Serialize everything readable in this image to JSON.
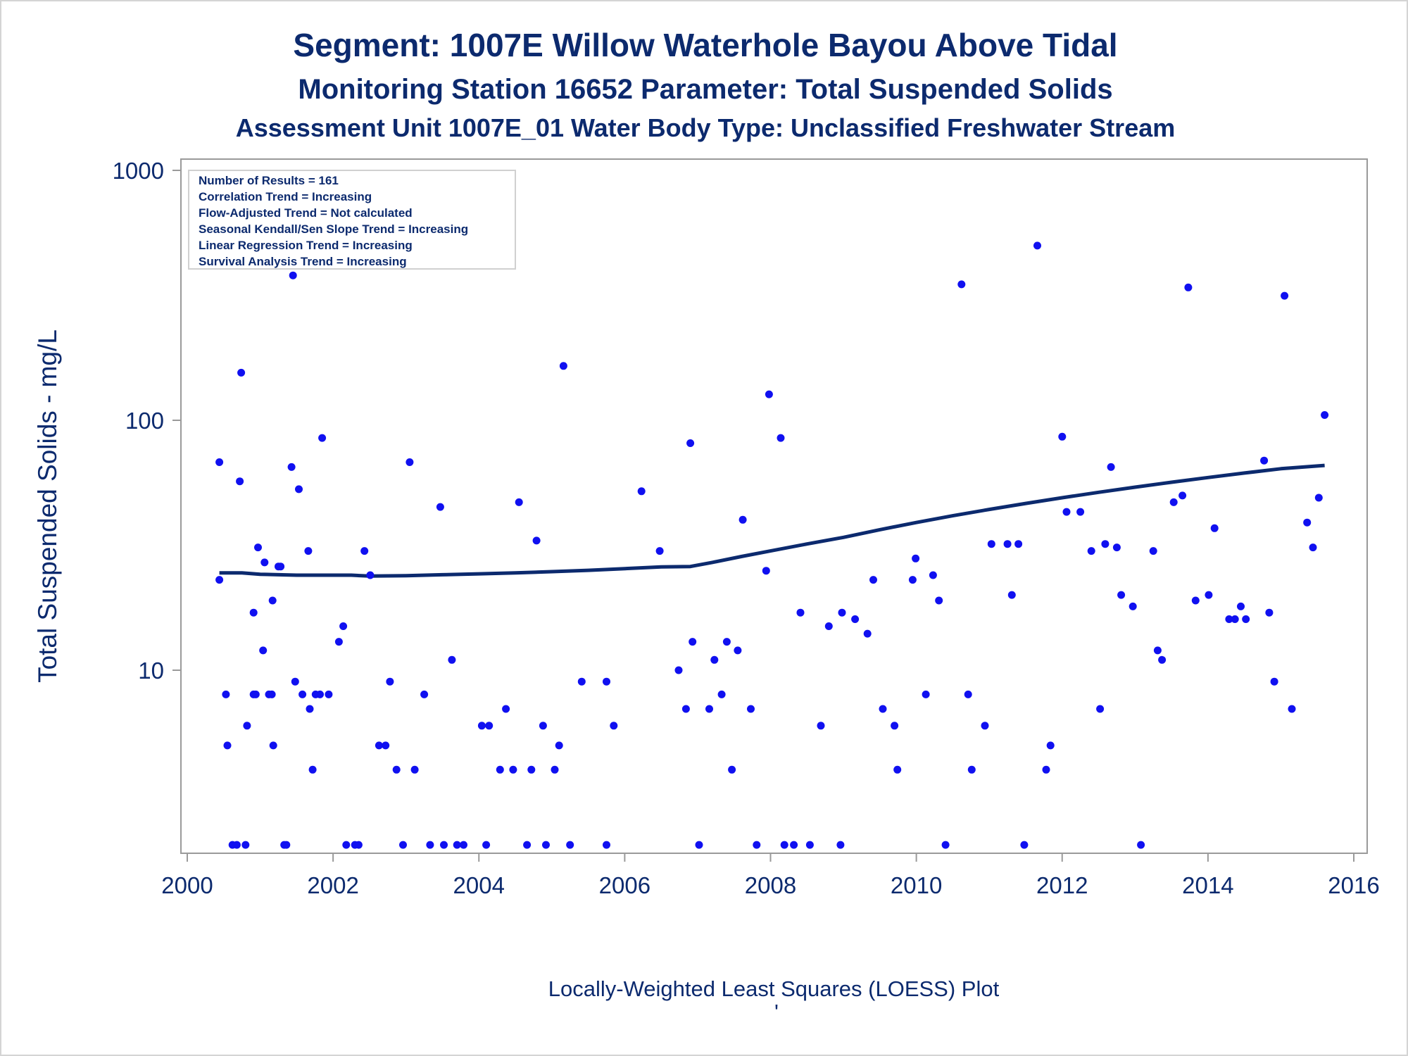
{
  "chart_data": {
    "type": "scatter",
    "title": "Segment: 1007E  Willow Waterhole Bayou Above Tidal",
    "subtitle": "Monitoring Station 16652 Parameter: Total Suspended Solids",
    "subtitle2": "Assessment Unit 1007E_01   Water Body Type: Unclassified Freshwater Stream",
    "xlabel": "",
    "ylabel": "Total Suspended Solids - mg/L",
    "caption": "Locally-Weighted Least Squares (LOESS) Plot",
    "caption_mark": "'",
    "y_scale": "log",
    "xlim": [
      2000,
      2016
    ],
    "ylim": [
      2,
      1000
    ],
    "x_ticks": [
      "2000",
      "2002",
      "2004",
      "2006",
      "2008",
      "2010",
      "2012",
      "2014",
      "2016"
    ],
    "y_ticks": [
      "10",
      "100",
      "1000"
    ],
    "grid": false,
    "legend_position": "top-left",
    "stats_box": [
      "Number of Results = 161",
      "Correlation Trend = Increasing",
      "Flow-Adjusted Trend = Not calculated",
      "Seasonal Kendall/Sen Slope Trend = Increasing",
      "Linear Regression Trend = Increasing",
      "Survival Analysis Trend = Increasing"
    ],
    "colors": {
      "points": "#1010f0",
      "loess": "#0c2a6e",
      "text": "#0c2a6e",
      "frame": "#9a9a9a"
    },
    "series": [
      {
        "type": "scatter",
        "points": [
          [
            2000.44,
            23
          ],
          [
            2000.44,
            68
          ],
          [
            2000.53,
            8
          ],
          [
            2000.55,
            5
          ],
          [
            2000.62,
            2
          ],
          [
            2000.68,
            2
          ],
          [
            2000.72,
            57
          ],
          [
            2000.74,
            155
          ],
          [
            2000.8,
            2
          ],
          [
            2000.82,
            6
          ],
          [
            2000.91,
            8
          ],
          [
            2000.91,
            17
          ],
          [
            2000.94,
            8
          ],
          [
            2000.97,
            31
          ],
          [
            2001.04,
            12
          ],
          [
            2001.06,
            27
          ],
          [
            2001.12,
            8
          ],
          [
            2001.16,
            8
          ],
          [
            2001.17,
            19
          ],
          [
            2001.18,
            5
          ],
          [
            2001.25,
            26
          ],
          [
            2001.28,
            26
          ],
          [
            2001.33,
            2
          ],
          [
            2001.36,
            2
          ],
          [
            2001.43,
            65
          ],
          [
            2001.45,
            380
          ],
          [
            2001.48,
            9
          ],
          [
            2001.53,
            53
          ],
          [
            2001.58,
            8
          ],
          [
            2001.66,
            30
          ],
          [
            2001.68,
            7
          ],
          [
            2001.72,
            4
          ],
          [
            2001.76,
            8
          ],
          [
            2001.82,
            8
          ],
          [
            2001.85,
            85
          ],
          [
            2001.94,
            8
          ],
          [
            2002.08,
            13
          ],
          [
            2002.14,
            15
          ],
          [
            2002.18,
            2
          ],
          [
            2002.3,
            2
          ],
          [
            2002.35,
            2
          ],
          [
            2002.43,
            30
          ],
          [
            2002.51,
            24
          ],
          [
            2002.63,
            5
          ],
          [
            2002.72,
            5
          ],
          [
            2002.78,
            9
          ],
          [
            2002.87,
            4
          ],
          [
            2002.96,
            2
          ],
          [
            2003.05,
            68
          ],
          [
            2003.12,
            4
          ],
          [
            2003.25,
            8
          ],
          [
            2003.33,
            2
          ],
          [
            2003.47,
            45
          ],
          [
            2003.52,
            2
          ],
          [
            2003.63,
            11
          ],
          [
            2003.7,
            2
          ],
          [
            2003.79,
            2
          ],
          [
            2004.04,
            6
          ],
          [
            2004.1,
            2
          ],
          [
            2004.14,
            6
          ],
          [
            2004.29,
            4
          ],
          [
            2004.37,
            7
          ],
          [
            2004.47,
            4
          ],
          [
            2004.55,
            47
          ],
          [
            2004.66,
            2
          ],
          [
            2004.72,
            4
          ],
          [
            2004.79,
            33
          ],
          [
            2004.88,
            6
          ],
          [
            2004.92,
            2
          ],
          [
            2005.04,
            4
          ],
          [
            2005.1,
            5
          ],
          [
            2005.16,
            165
          ],
          [
            2005.25,
            2
          ],
          [
            2005.41,
            9
          ],
          [
            2005.75,
            2
          ],
          [
            2005.75,
            9
          ],
          [
            2005.85,
            6
          ],
          [
            2006.23,
            52
          ],
          [
            2006.48,
            30
          ],
          [
            2006.74,
            10
          ],
          [
            2006.84,
            7
          ],
          [
            2006.9,
            81
          ],
          [
            2006.93,
            13
          ],
          [
            2007.02,
            2
          ],
          [
            2007.16,
            7
          ],
          [
            2007.23,
            11
          ],
          [
            2007.33,
            8
          ],
          [
            2007.4,
            13
          ],
          [
            2007.47,
            4
          ],
          [
            2007.55,
            12
          ],
          [
            2007.62,
            40
          ],
          [
            2007.73,
            7
          ],
          [
            2007.81,
            2
          ],
          [
            2007.94,
            25
          ],
          [
            2007.98,
            127
          ],
          [
            2008.14,
            85
          ],
          [
            2008.19,
            2
          ],
          [
            2008.32,
            2
          ],
          [
            2008.41,
            17
          ],
          [
            2008.54,
            2
          ],
          [
            2008.69,
            6
          ],
          [
            2008.8,
            15
          ],
          [
            2008.96,
            2
          ],
          [
            2008.98,
            17
          ],
          [
            2009.16,
            16
          ],
          [
            2009.33,
            14
          ],
          [
            2009.41,
            23
          ],
          [
            2009.54,
            7
          ],
          [
            2009.7,
            6
          ],
          [
            2009.74,
            4
          ],
          [
            2009.95,
            23
          ],
          [
            2009.99,
            28
          ],
          [
            2010.13,
            8
          ],
          [
            2010.23,
            24
          ],
          [
            2010.31,
            19
          ],
          [
            2010.4,
            2
          ],
          [
            2010.62,
            350
          ],
          [
            2010.71,
            8
          ],
          [
            2010.76,
            4
          ],
          [
            2010.94,
            6
          ],
          [
            2011.03,
            32
          ],
          [
            2011.25,
            32
          ],
          [
            2011.31,
            20
          ],
          [
            2011.4,
            32
          ],
          [
            2011.48,
            2
          ],
          [
            2011.66,
            500
          ],
          [
            2011.78,
            4
          ],
          [
            2011.84,
            5
          ],
          [
            2012.0,
            86
          ],
          [
            2012.06,
            43
          ],
          [
            2012.25,
            43
          ],
          [
            2012.4,
            30
          ],
          [
            2012.52,
            7
          ],
          [
            2012.59,
            32
          ],
          [
            2012.67,
            65
          ],
          [
            2012.75,
            31
          ],
          [
            2012.81,
            20
          ],
          [
            2012.97,
            18
          ],
          [
            2013.08,
            2
          ],
          [
            2013.25,
            30
          ],
          [
            2013.31,
            12
          ],
          [
            2013.37,
            11
          ],
          [
            2013.53,
            47
          ],
          [
            2013.65,
            50
          ],
          [
            2013.73,
            340
          ],
          [
            2013.83,
            19
          ],
          [
            2014.01,
            20
          ],
          [
            2014.09,
            37
          ],
          [
            2014.29,
            16
          ],
          [
            2014.37,
            16
          ],
          [
            2014.45,
            18
          ],
          [
            2014.52,
            16
          ],
          [
            2014.77,
            69
          ],
          [
            2014.84,
            17
          ],
          [
            2014.91,
            9
          ],
          [
            2015.05,
            315
          ],
          [
            2015.15,
            7
          ],
          [
            2015.36,
            39
          ],
          [
            2015.44,
            31
          ],
          [
            2015.52,
            49
          ],
          [
            2015.6,
            105
          ]
        ]
      },
      {
        "type": "line",
        "points": [
          [
            2000.44,
            24.5
          ],
          [
            2000.75,
            24.5
          ],
          [
            2001.0,
            24.2
          ],
          [
            2001.5,
            24.0
          ],
          [
            2002.0,
            24.0
          ],
          [
            2002.25,
            24.0
          ],
          [
            2002.5,
            23.8
          ],
          [
            2003.0,
            23.9
          ],
          [
            2003.5,
            24.1
          ],
          [
            2004.0,
            24.3
          ],
          [
            2004.5,
            24.5
          ],
          [
            2005.0,
            24.8
          ],
          [
            2005.5,
            25.1
          ],
          [
            2006.0,
            25.5
          ],
          [
            2006.5,
            25.9
          ],
          [
            2006.9,
            26.0
          ],
          [
            2007.2,
            27.0
          ],
          [
            2007.6,
            28.5
          ],
          [
            2008.0,
            30.0
          ],
          [
            2008.5,
            32.0
          ],
          [
            2009.0,
            34.0
          ],
          [
            2009.5,
            36.5
          ],
          [
            2010.0,
            39.0
          ],
          [
            2010.5,
            41.5
          ],
          [
            2011.0,
            44.0
          ],
          [
            2011.5,
            46.5
          ],
          [
            2012.0,
            49.0
          ],
          [
            2012.5,
            51.5
          ],
          [
            2013.0,
            54.0
          ],
          [
            2013.5,
            56.5
          ],
          [
            2014.0,
            59.0
          ],
          [
            2014.5,
            61.5
          ],
          [
            2015.0,
            64.0
          ],
          [
            2015.6,
            66.0
          ]
        ]
      }
    ]
  }
}
